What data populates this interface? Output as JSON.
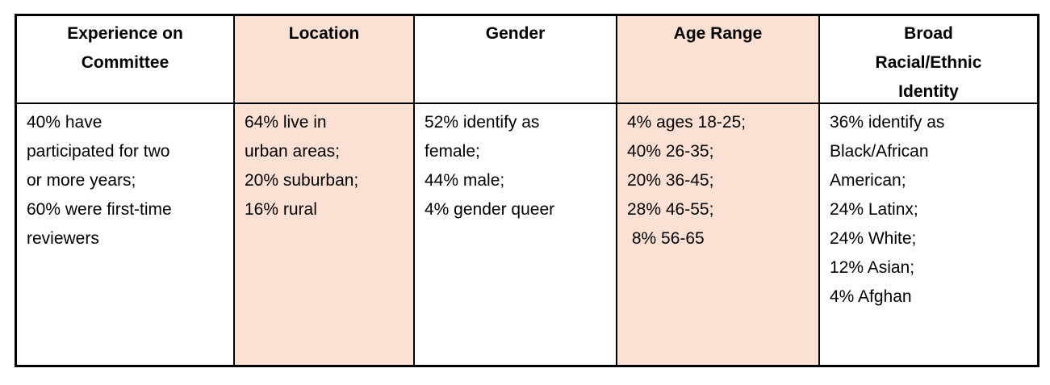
{
  "table": {
    "title": "Reviewer demographics table",
    "shaded_color": "#fce0d3",
    "border_color": "#000000",
    "columns": [
      {
        "id": "experience",
        "shaded": false,
        "header_lines": [
          "Experience on",
          "Committee"
        ],
        "body_lines": [
          "40% have",
          "participated for two",
          "or more years;",
          "60% were first-time",
          "reviewers"
        ]
      },
      {
        "id": "location",
        "shaded": true,
        "header_lines": [
          "Location"
        ],
        "body_lines": [
          "64% live in",
          "urban areas;",
          "20% suburban;",
          "16% rural"
        ]
      },
      {
        "id": "gender",
        "shaded": false,
        "header_lines": [
          "Gender"
        ],
        "body_lines": [
          "52% identify as",
          "female;",
          "44% male;",
          "4% gender queer"
        ]
      },
      {
        "id": "age-range",
        "shaded": true,
        "header_lines": [
          "Age Range"
        ],
        "body_lines": [
          "4% ages 18-25;",
          "40% 26-35;",
          "20% 36-45;",
          "28% 46-55;",
          " 8% 56-65"
        ]
      },
      {
        "id": "racial-ethnic-identity",
        "shaded": false,
        "header_lines": [
          "Broad",
          "Racial/Ethnic",
          "Identity"
        ],
        "body_lines": [
          "36% identify as",
          "Black/African",
          "American;",
          "24% Latinx;",
          "24% White;",
          "12% Asian;",
          "4% Afghan"
        ]
      }
    ]
  }
}
